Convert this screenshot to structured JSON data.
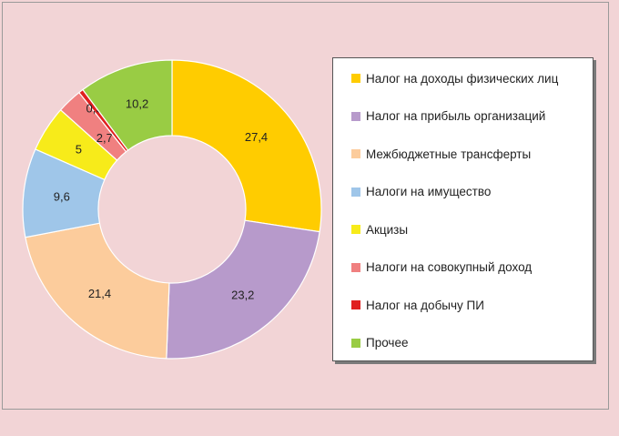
{
  "chart_data": {
    "type": "pie",
    "donut": true,
    "legend_position": "right",
    "series": [
      {
        "name": "Налог на доходы физических лиц",
        "value": 27.4,
        "label": "27,4",
        "color": "#ffcc00"
      },
      {
        "name": "Налог на прибыль организаций",
        "value": 23.2,
        "label": "23,2",
        "color": "#b79acb"
      },
      {
        "name": "Межбюджетные трансферты",
        "value": 21.4,
        "label": "21,4",
        "color": "#fccc9c"
      },
      {
        "name": "Налоги на имущество",
        "value": 9.6,
        "label": "9,6",
        "color": "#9fc6e9"
      },
      {
        "name": "Акцизы",
        "value": 5,
        "label": "5",
        "color": "#f7eb1a"
      },
      {
        "name": "Налоги на совокупный доход",
        "value": 2.7,
        "label": "2,7",
        "color": "#f08080"
      },
      {
        "name": "Налог на добычу ПИ",
        "value": 0.5,
        "label": "0,5",
        "color": "#e02020"
      },
      {
        "name": "Прочее",
        "value": 10.2,
        "label": "10,2",
        "color": "#99cc44"
      }
    ]
  }
}
